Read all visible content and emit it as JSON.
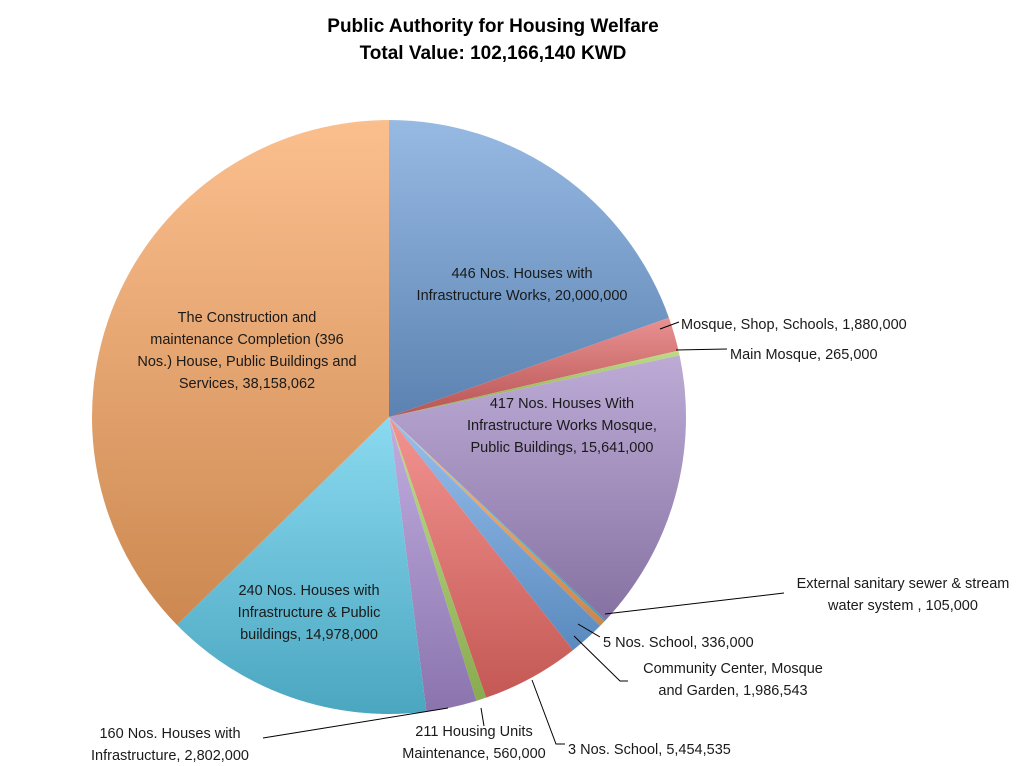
{
  "chart_data": {
    "type": "pie",
    "title": "Public Authority for Housing Welfare",
    "subtitle": "Total Value: 102,166,140 KWD",
    "slices": [
      {
        "label_lines": [
          "446 Nos. Houses with",
          "Infrastructure Works, 20,000,000"
        ],
        "value": 20000000,
        "color": "#6f9fd8"
      },
      {
        "label_lines": [
          "Mosque, Shop, Schools, 1,880,000"
        ],
        "value": 1880000,
        "color": "#e06666"
      },
      {
        "label_lines": [
          "Main Mosque, 265,000"
        ],
        "value": 265000,
        "color": "#a6cf5a"
      },
      {
        "label_lines": [
          "417 Nos. Houses With",
          "Infrastructure Works Mosque,",
          "Public Buildings, 15,641,000"
        ],
        "value": 15641000,
        "color": "#a48bc6"
      },
      {
        "label_lines": [
          "External sanitary sewer & stream",
          "water system , 105,000"
        ],
        "value": 105000,
        "color": "#45c0e0"
      },
      {
        "label_lines": [
          "5 Nos. School, 336,000"
        ],
        "value": 336000,
        "color": "#f6a35e"
      },
      {
        "label_lines": [
          "Community Center, Mosque",
          "and Garden, 1,986,543"
        ],
        "value": 1986543,
        "color": "#6ea8e8"
      },
      {
        "label_lines": [
          "3 Nos. School, 5,454,535"
        ],
        "value": 5454535,
        "color": "#ef6b66"
      },
      {
        "label_lines": [
          "211 Housing Units",
          "Maintenance, 560,000"
        ],
        "value": 560000,
        "color": "#a7d160"
      },
      {
        "label_lines": [
          "160 Nos. Houses with",
          "Infrastructure, 2,802,000"
        ],
        "value": 2802000,
        "color": "#a98ed4"
      },
      {
        "label_lines": [
          "240 Nos. Houses with",
          "Infrastructure & Public",
          "buildings, 14,978,000"
        ],
        "value": 14978000,
        "color": "#5ccbea"
      },
      {
        "label_lines": [
          "The Construction and",
          "maintenance Completion (396",
          "Nos.) House, Public Buildings and",
          "Services, 38,158,062"
        ],
        "value": 38158062,
        "color": "#f9a662"
      }
    ]
  }
}
